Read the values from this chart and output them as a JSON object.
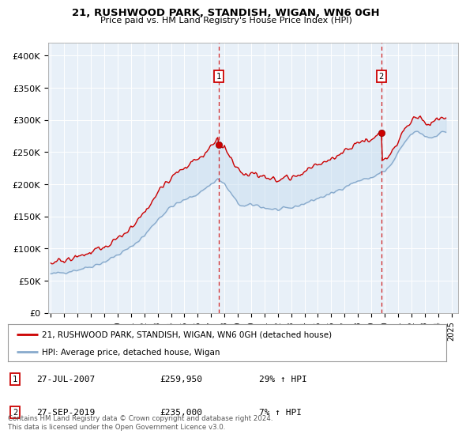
{
  "title": "21, RUSHWOOD PARK, STANDISH, WIGAN, WN6 0GH",
  "subtitle": "Price paid vs. HM Land Registry's House Price Index (HPI)",
  "legend_line1": "21, RUSHWOOD PARK, STANDISH, WIGAN, WN6 0GH (detached house)",
  "legend_line2": "HPI: Average price, detached house, Wigan",
  "footnote": "Contains HM Land Registry data © Crown copyright and database right 2024.\nThis data is licensed under the Open Government Licence v3.0.",
  "transactions": [
    {
      "num": 1,
      "date": "27-JUL-2007",
      "price": 259950,
      "hpi_change": "29% ↑ HPI",
      "year": 2007.57
    },
    {
      "num": 2,
      "date": "27-SEP-2019",
      "price": 235000,
      "hpi_change": "7% ↑ HPI",
      "year": 2019.75
    }
  ],
  "ylim": [
    0,
    420000
  ],
  "xlim_start": 1994.8,
  "xlim_end": 2025.5,
  "yticks": [
    0,
    50000,
    100000,
    150000,
    200000,
    250000,
    300000,
    350000,
    400000
  ],
  "ytick_labels": [
    "£0",
    "£50K",
    "£100K",
    "£150K",
    "£200K",
    "£250K",
    "£300K",
    "£350K",
    "£400K"
  ],
  "xticks": [
    1995,
    1996,
    1997,
    1998,
    1999,
    2000,
    2001,
    2002,
    2003,
    2004,
    2005,
    2006,
    2007,
    2008,
    2009,
    2010,
    2011,
    2012,
    2013,
    2014,
    2015,
    2016,
    2017,
    2018,
    2019,
    2020,
    2021,
    2022,
    2023,
    2024,
    2025
  ],
  "red_line_color": "#cc0000",
  "blue_line_color": "#88aacc",
  "fill_color": "#c8ddf0",
  "plot_bg": "#e8f0f8",
  "grid_color": "#ffffff",
  "marker_box_color": "#cc0000",
  "dashed_line_color": "#cc0000"
}
